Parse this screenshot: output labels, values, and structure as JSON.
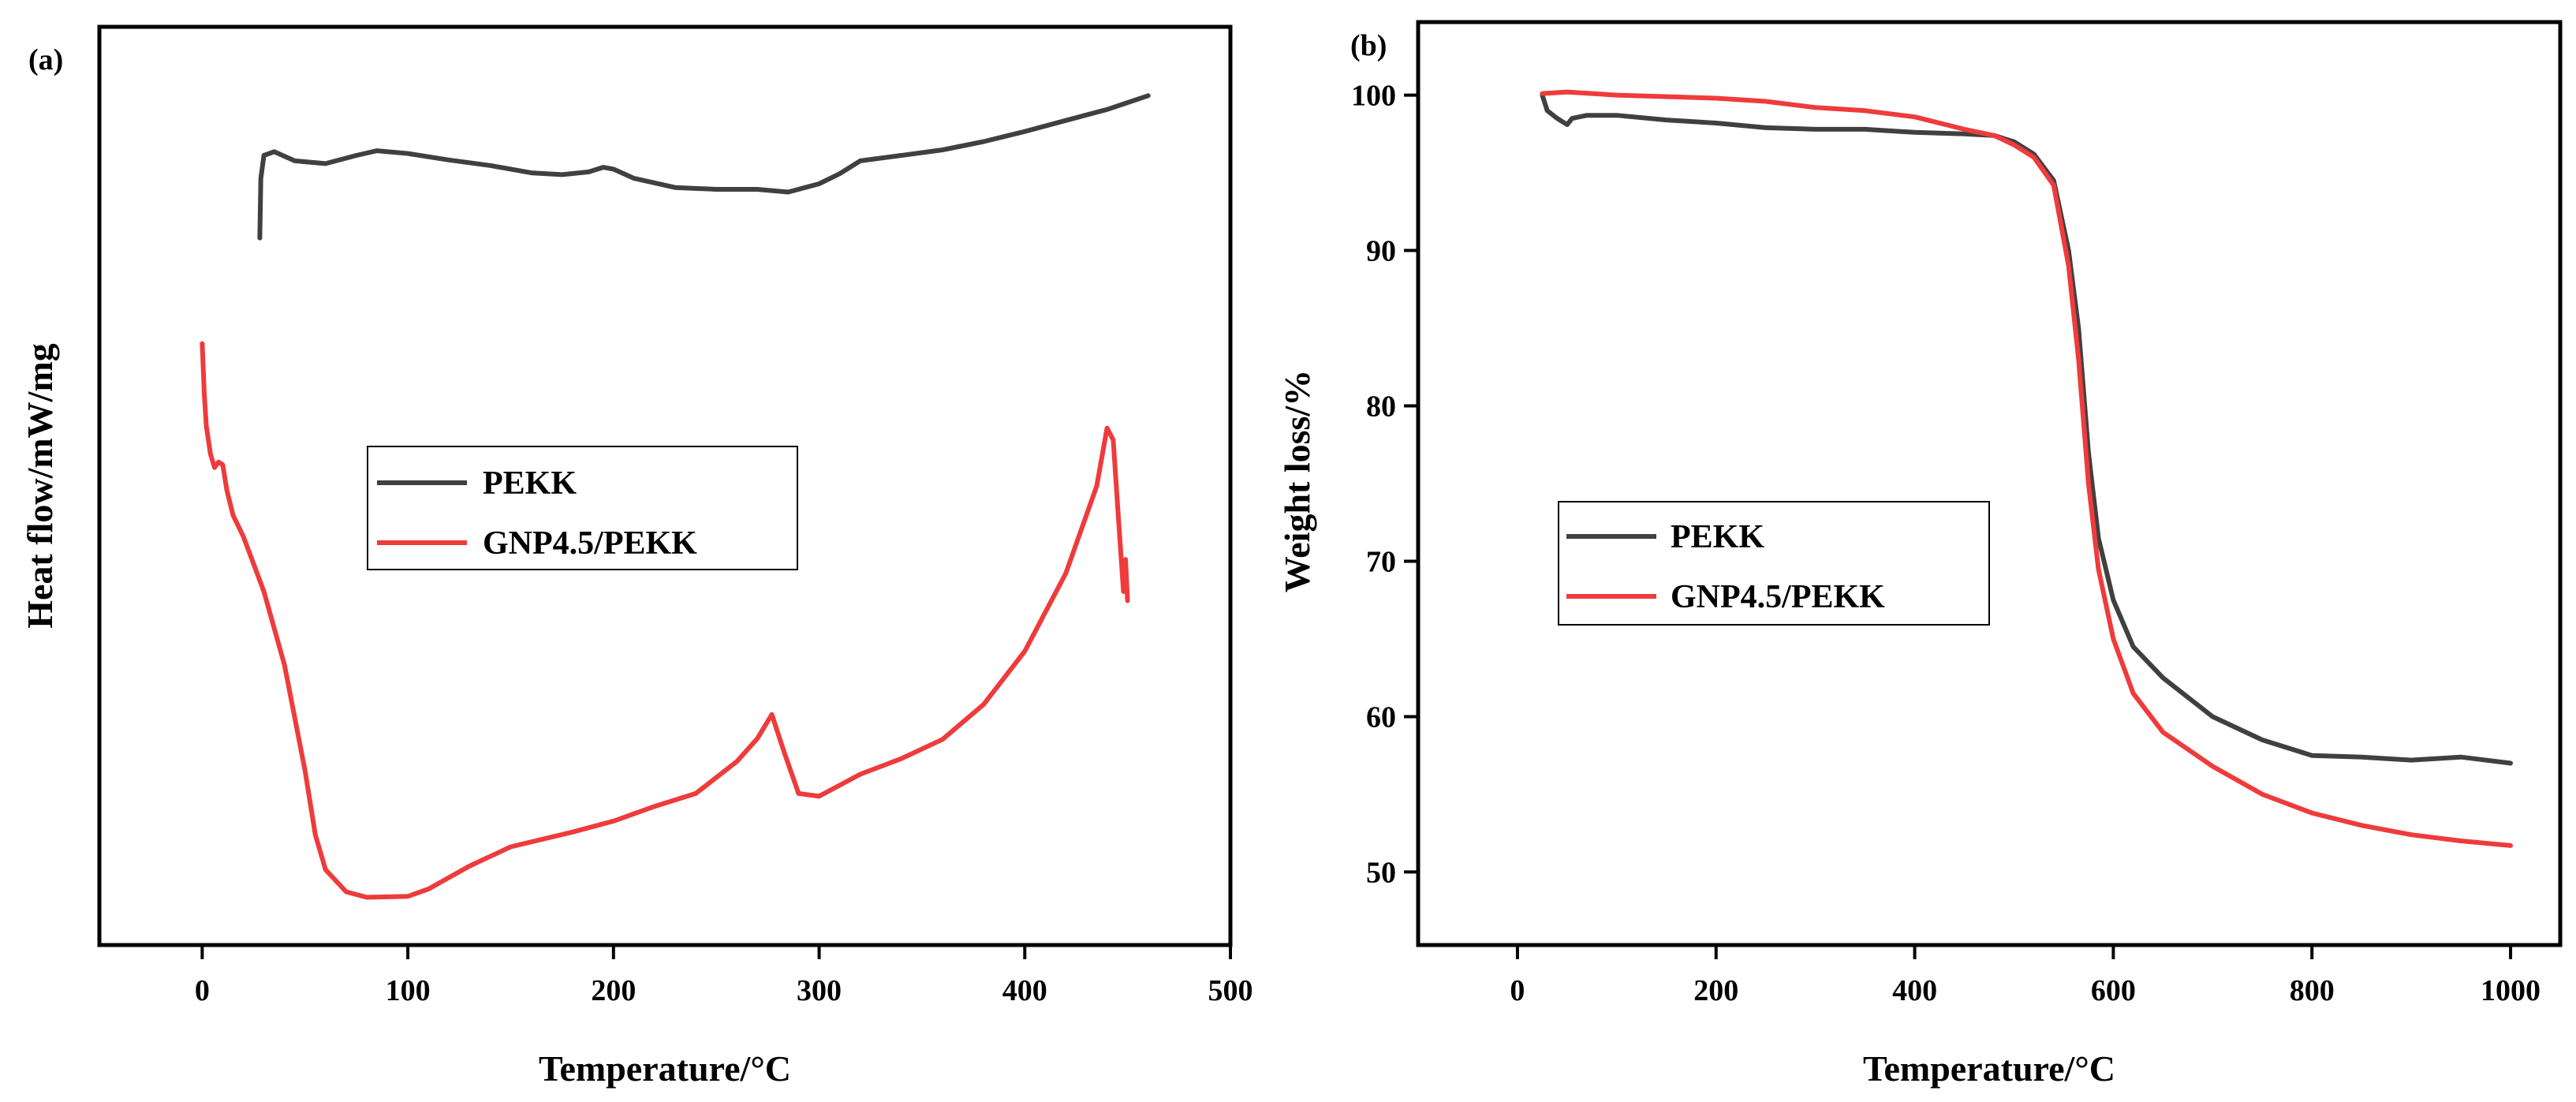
{
  "chart_data": [
    {
      "panel_label": "(a)",
      "type": "line",
      "title": "",
      "xlabel": "Temperature/°C",
      "ylabel": "Heat flow/mW/mg",
      "xlim": [
        -50,
        500
      ],
      "ylim": [
        0,
        100
      ],
      "x_ticks": [
        0,
        100,
        200,
        300,
        400,
        500
      ],
      "y_ticks": [],
      "legend": {
        "placement": "center-left"
      },
      "series": [
        {
          "name": "PEKK",
          "color": "#404040",
          "points": [
            [
              28,
              77
            ],
            [
              28.5,
              83.5
            ],
            [
              30,
              86
            ],
            [
              35,
              86.4
            ],
            [
              45,
              85.4
            ],
            [
              60,
              85.1
            ],
            [
              75,
              86
            ],
            [
              85,
              86.5
            ],
            [
              100,
              86.2
            ],
            [
              120,
              85.5
            ],
            [
              140,
              84.9
            ],
            [
              160,
              84.1
            ],
            [
              175,
              83.9
            ],
            [
              188,
              84.2
            ],
            [
              195,
              84.7
            ],
            [
              200,
              84.5
            ],
            [
              210,
              83.5
            ],
            [
              230,
              82.5
            ],
            [
              250,
              82.3
            ],
            [
              270,
              82.3
            ],
            [
              285,
              82
            ],
            [
              300,
              82.9
            ],
            [
              310,
              84
            ],
            [
              320,
              85.4
            ],
            [
              340,
              86
            ],
            [
              360,
              86.6
            ],
            [
              380,
              87.5
            ],
            [
              400,
              88.6
            ],
            [
              420,
              89.8
            ],
            [
              440,
              91
            ],
            [
              460,
              92.5
            ]
          ]
        },
        {
          "name": "GNP4.5/PEKK",
          "color": "#ef3b3b",
          "points": [
            [
              0,
              65.5
            ],
            [
              1,
              60
            ],
            [
              2,
              56.5
            ],
            [
              4,
              53.5
            ],
            [
              6,
              52
            ],
            [
              8,
              52.6
            ],
            [
              10,
              52.3
            ],
            [
              12,
              49.5
            ],
            [
              15,
              46.8
            ],
            [
              20,
              44.5
            ],
            [
              30,
              38.5
            ],
            [
              40,
              30.5
            ],
            [
              50,
              19
            ],
            [
              55,
              12
            ],
            [
              60,
              8.2
            ],
            [
              70,
              5.8
            ],
            [
              80,
              5.2
            ],
            [
              100,
              5.3
            ],
            [
              110,
              6.1
            ],
            [
              130,
              8.6
            ],
            [
              150,
              10.7
            ],
            [
              180,
              12.3
            ],
            [
              200,
              13.5
            ],
            [
              220,
              15.1
            ],
            [
              240,
              16.5
            ],
            [
              260,
              20
            ],
            [
              270,
              22.5
            ],
            [
              277,
              25.1
            ],
            [
              283,
              21
            ],
            [
              290,
              16.5
            ],
            [
              300,
              16.2
            ],
            [
              320,
              18.6
            ],
            [
              340,
              20.3
            ],
            [
              360,
              22.4
            ],
            [
              380,
              26.2
            ],
            [
              400,
              32
            ],
            [
              420,
              40.5
            ],
            [
              435,
              50
            ],
            [
              440,
              56.3
            ],
            [
              443,
              55
            ],
            [
              446,
              45
            ],
            [
              448,
              38.5
            ],
            [
              449,
              42
            ],
            [
              450,
              37.5
            ]
          ]
        }
      ]
    },
    {
      "panel_label": "(b)",
      "type": "line",
      "title": "",
      "xlabel": "Temperature/°C",
      "ylabel": "Weight loss/%",
      "xlim": [
        -100,
        1050
      ],
      "ylim": [
        45.3,
        104.7
      ],
      "x_ticks": [
        0,
        200,
        400,
        600,
        800,
        1000
      ],
      "y_ticks": [
        50,
        60,
        70,
        80,
        90,
        100
      ],
      "legend": {
        "placement": "center-left"
      },
      "series": [
        {
          "name": "PEKK",
          "color": "#404040",
          "points": [
            [
              25,
              100
            ],
            [
              30,
              99
            ],
            [
              40,
              98.5
            ],
            [
              50,
              98.1
            ],
            [
              55,
              98.5
            ],
            [
              70,
              98.7
            ],
            [
              100,
              98.7
            ],
            [
              150,
              98.4
            ],
            [
              200,
              98.2
            ],
            [
              250,
              97.9
            ],
            [
              300,
              97.8
            ],
            [
              350,
              97.8
            ],
            [
              400,
              97.6
            ],
            [
              450,
              97.5
            ],
            [
              480,
              97.4
            ],
            [
              500,
              97
            ],
            [
              520,
              96.2
            ],
            [
              540,
              94.5
            ],
            [
              555,
              90
            ],
            [
              565,
              85
            ],
            [
              575,
              77
            ],
            [
              585,
              71.5
            ],
            [
              600,
              67.5
            ],
            [
              620,
              64.5
            ],
            [
              650,
              62.5
            ],
            [
              700,
              60
            ],
            [
              750,
              58.5
            ],
            [
              800,
              57.5
            ],
            [
              850,
              57.4
            ],
            [
              900,
              57.2
            ],
            [
              950,
              57.4
            ],
            [
              1000,
              57
            ]
          ]
        },
        {
          "name": "GNP4.5/PEKK",
          "color": "#ef3b3b",
          "points": [
            [
              25,
              100.1
            ],
            [
              50,
              100.2
            ],
            [
              100,
              100
            ],
            [
              150,
              99.9
            ],
            [
              200,
              99.8
            ],
            [
              250,
              99.6
            ],
            [
              300,
              99.2
            ],
            [
              350,
              99
            ],
            [
              400,
              98.6
            ],
            [
              450,
              97.8
            ],
            [
              480,
              97.4
            ],
            [
              500,
              96.8
            ],
            [
              520,
              96
            ],
            [
              540,
              94.2
            ],
            [
              555,
              89
            ],
            [
              565,
              83
            ],
            [
              575,
              75
            ],
            [
              585,
              69.5
            ],
            [
              600,
              65
            ],
            [
              620,
              61.5
            ],
            [
              650,
              59
            ],
            [
              700,
              56.8
            ],
            [
              750,
              55
            ],
            [
              800,
              53.8
            ],
            [
              850,
              53
            ],
            [
              900,
              52.4
            ],
            [
              950,
              52
            ],
            [
              1000,
              51.7
            ]
          ]
        }
      ]
    }
  ]
}
